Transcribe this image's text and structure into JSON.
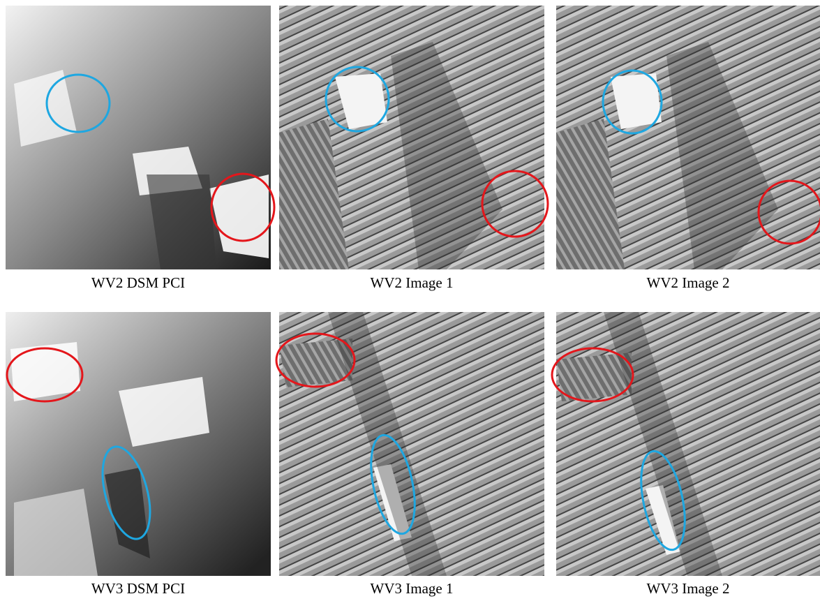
{
  "panels": [
    {
      "caption": "WV2 DSM PCI"
    },
    {
      "caption": "WV2 Image 1"
    },
    {
      "caption": "WV2 Image 2"
    },
    {
      "caption": "WV3 DSM PCI"
    },
    {
      "caption": "WV3 Image 1"
    },
    {
      "caption": "WV3 Image 2"
    }
  ]
}
